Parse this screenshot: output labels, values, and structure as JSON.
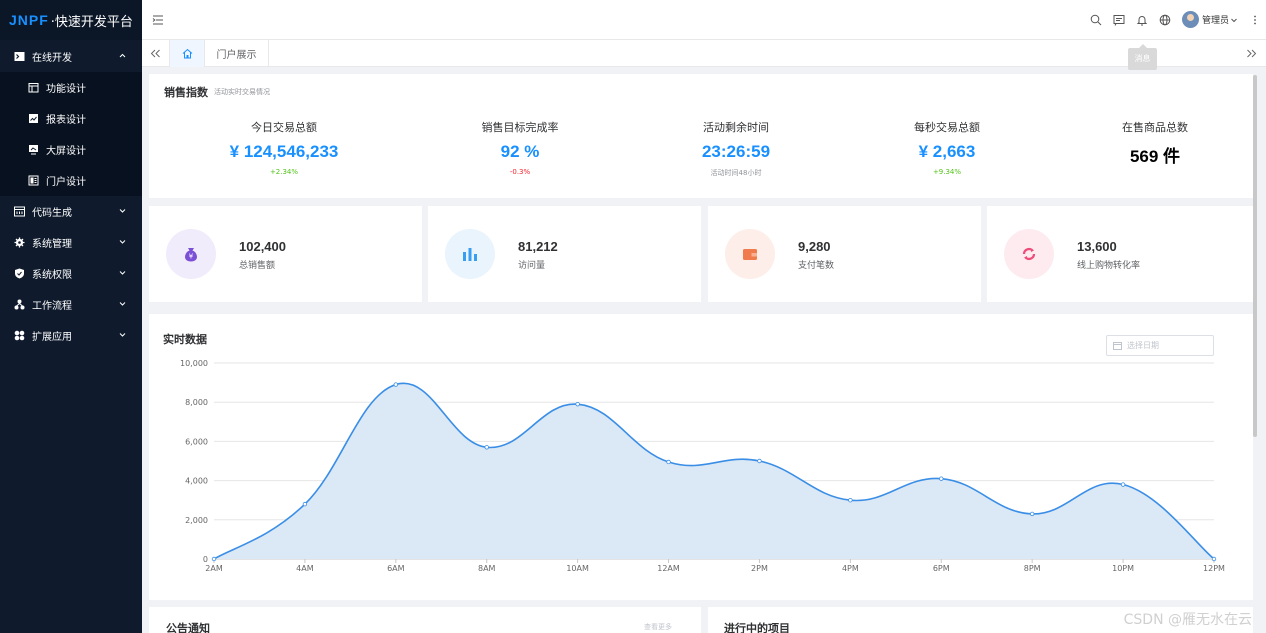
{
  "app": {
    "logo_brand": "JNPF",
    "logo_text": "·快速开发平台"
  },
  "sidebar": {
    "groups": [
      {
        "label": "在线开发",
        "icon": "terminal-icon",
        "expanded": true,
        "items": [
          {
            "label": "功能设计",
            "icon": "calendar-icon"
          },
          {
            "label": "报表设计",
            "icon": "line-chart-icon"
          },
          {
            "label": "大屏设计",
            "icon": "screen-icon"
          },
          {
            "label": "门户设计",
            "icon": "portal-icon"
          }
        ]
      },
      {
        "label": "代码生成",
        "icon": "code-icon"
      },
      {
        "label": "系统管理",
        "icon": "gear-icon"
      },
      {
        "label": "系统权限",
        "icon": "shield-icon"
      },
      {
        "label": "工作流程",
        "icon": "flow-icon"
      },
      {
        "label": "扩展应用",
        "icon": "apps-icon"
      }
    ]
  },
  "topbar": {
    "user_name": "管理员",
    "tooltip": "消息"
  },
  "tabs": {
    "items": [
      {
        "label": "门户展示"
      }
    ]
  },
  "sales_index": {
    "title": "销售指数",
    "subtitle": "活动实时交易情况",
    "items": [
      {
        "label": "今日交易总额",
        "value": "¥ 124,546,233",
        "delta": "+2.34%",
        "delta_color": "#52c41a",
        "value_color": "#1890ff"
      },
      {
        "label": "销售目标完成率",
        "value": "92 %",
        "delta": "-0.3%",
        "delta_color": "#f5222d",
        "value_color": "#1890ff"
      },
      {
        "label": "活动剩余时间",
        "value": "23:26:59",
        "delta": "活动时间48小时",
        "delta_color": "#909399",
        "value_color": "#1890ff"
      },
      {
        "label": "每秒交易总额",
        "value": "¥ 2,663",
        "delta": "+9.34%",
        "delta_color": "#52c41a",
        "value_color": "#1890ff"
      },
      {
        "label": "在售商品总数",
        "value": "569 件",
        "delta": "",
        "delta_color": "#909399",
        "value_color": "#000000"
      }
    ]
  },
  "stats": [
    {
      "value": "102,400",
      "label": "总销售额",
      "icon": "money-bag-icon",
      "bg": "#f1ecfb",
      "color": "#7b4fd6"
    },
    {
      "value": "81,212",
      "label": "访问量",
      "icon": "bar-chart-icon",
      "bg": "#e9f4fd",
      "color": "#3a9ef0"
    },
    {
      "value": "9,280",
      "label": "支付笔数",
      "icon": "wallet-icon",
      "bg": "#fdeee9",
      "color": "#f07c4d"
    },
    {
      "value": "13,600",
      "label": "线上购物转化率",
      "icon": "refresh-icon",
      "bg": "#fdebf0",
      "color": "#ee4d7a"
    }
  ],
  "realtime": {
    "title": "实时数据",
    "date_placeholder": "选择日期"
  },
  "chart_data": {
    "type": "area",
    "title": "",
    "x": [
      "2AM",
      "4AM",
      "6AM",
      "8AM",
      "10AM",
      "12AM",
      "2PM",
      "4PM",
      "6PM",
      "8PM",
      "10PM",
      "12PM"
    ],
    "series": [
      {
        "values": [
          0,
          2800,
          8900,
          5700,
          7900,
          4950,
          5000,
          3000,
          4100,
          2300,
          3800,
          0
        ]
      }
    ],
    "yticks": [
      "0",
      "2,000",
      "4,000",
      "6,000",
      "8,000",
      "10,000"
    ],
    "ylim": [
      0,
      10000
    ],
    "grid": true,
    "line_color": "#3a8ee6",
    "fill_color": "#dbe8f5"
  },
  "bottom": {
    "left_title": "公告通知",
    "right_title": "进行中的项目",
    "left_more": "查看更多"
  },
  "watermark": "CSDN @雁无水在云"
}
